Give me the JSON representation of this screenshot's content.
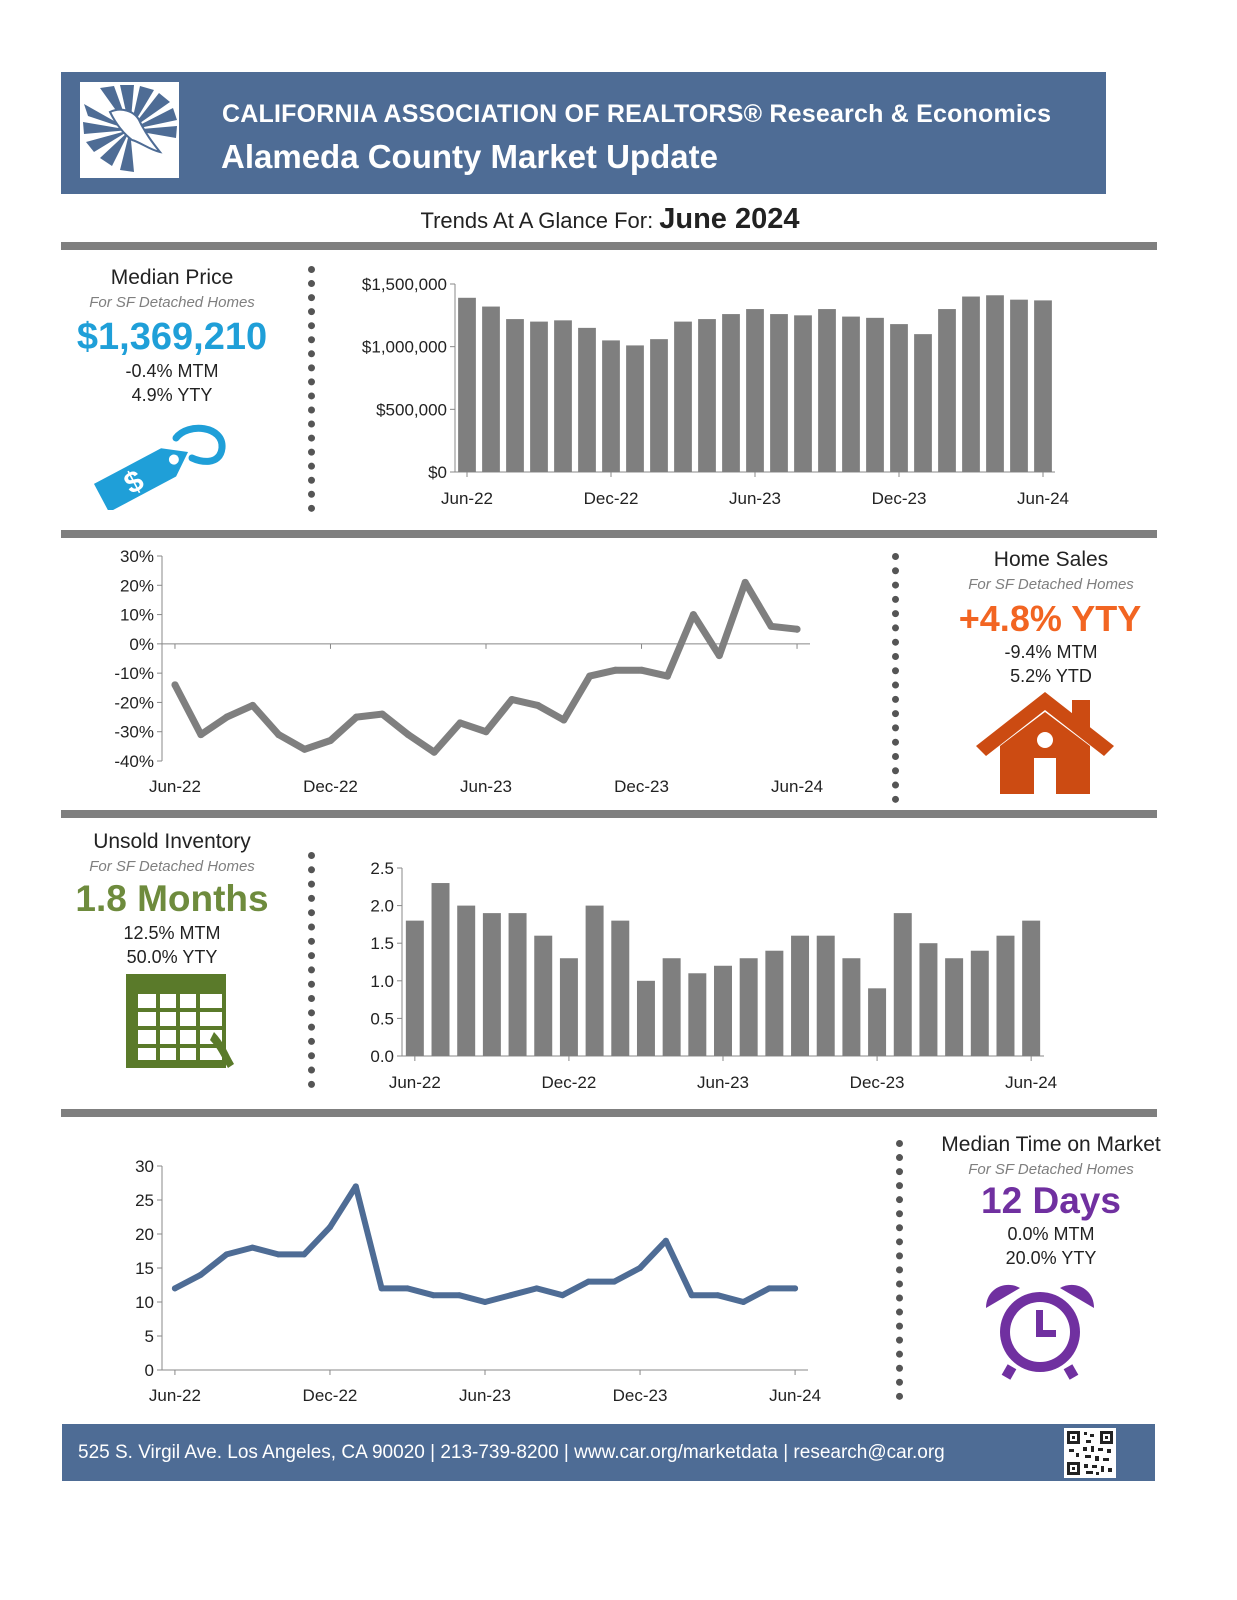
{
  "header": {
    "org": "CALIFORNIA ASSOCIATION OF REALTORS® Research & Economics",
    "title": "Alameda County Market Update",
    "trends_label": "Trends At A Glance For:",
    "period": "June 2024"
  },
  "median_price": {
    "title": "Median Price",
    "subtitle": "For SF Detached Homes",
    "value": "$1,369,210",
    "mtm": "-0.4% MTM",
    "yty": "4.9% YTY",
    "icon": "price-tag-icon"
  },
  "home_sales": {
    "title": "Home Sales",
    "subtitle": "For SF Detached Homes",
    "value": "+4.8% YTY",
    "mtm": "-9.4% MTM",
    "ytd": "5.2% YTD",
    "icon": "house-icon"
  },
  "inventory": {
    "title": "Unsold Inventory",
    "subtitle": "For SF Detached Homes",
    "value": "1.8 Months",
    "mtm": "12.5% MTM",
    "yty": "50.0% YTY",
    "icon": "calendar-icon"
  },
  "time_on_market": {
    "title": "Median Time on Market",
    "subtitle": "For SF Detached Homes",
    "value": "12 Days",
    "mtm": "0.0% MTM",
    "yty": "20.0% YTY",
    "icon": "alarm-clock-icon"
  },
  "colors": {
    "header": "#4e6c95",
    "price": "#1f9fd8",
    "sales": "#f26522",
    "house": "#cc4b12",
    "inventory": "#6e8b3d",
    "calendar": "#5a7a2a",
    "days": "#7030a0",
    "bar": "#7f7f7f",
    "line_gray": "#7f7f7f",
    "line_blue": "#4e6c95"
  },
  "footer": {
    "text": "525 S. Virgil Ave. Los Angeles, CA 90020 | 213-739-8200 | www.car.org/marketdata | research@car.org",
    "qr": "qr-code-icon"
  },
  "chart_data": [
    {
      "id": "price",
      "type": "bar",
      "title": "Median Price",
      "categories": [
        "Jun-22",
        "Jul-22",
        "Aug-22",
        "Sep-22",
        "Oct-22",
        "Nov-22",
        "Dec-22",
        "Jan-23",
        "Feb-23",
        "Mar-23",
        "Apr-23",
        "May-23",
        "Jun-23",
        "Jul-23",
        "Aug-23",
        "Sep-23",
        "Oct-23",
        "Nov-23",
        "Dec-23",
        "Jan-24",
        "Feb-24",
        "Mar-24",
        "Apr-24",
        "May-24",
        "Jun-24"
      ],
      "values": [
        1390000,
        1320000,
        1220000,
        1200000,
        1210000,
        1150000,
        1050000,
        1010000,
        1060000,
        1200000,
        1220000,
        1260000,
        1300000,
        1260000,
        1250000,
        1300000,
        1240000,
        1230000,
        1180000,
        1100000,
        1300000,
        1400000,
        1410000,
        1375000,
        1369210
      ],
      "tick_labels": [
        "Jun-22",
        "Dec-22",
        "Jun-23",
        "Dec-23",
        "Jun-24"
      ],
      "y_ticks": [
        "$0",
        "$500,000",
        "$1,000,000",
        "$1,500,000"
      ],
      "ylim": [
        0,
        1500000
      ]
    },
    {
      "id": "sales",
      "type": "line",
      "title": "Home Sales YTY % change",
      "categories": [
        "Jun-22",
        "Jul-22",
        "Aug-22",
        "Sep-22",
        "Oct-22",
        "Nov-22",
        "Dec-22",
        "Jan-23",
        "Feb-23",
        "Mar-23",
        "Apr-23",
        "May-23",
        "Jun-23",
        "Jul-23",
        "Aug-23",
        "Sep-23",
        "Oct-23",
        "Nov-23",
        "Dec-23",
        "Jan-24",
        "Feb-24",
        "Mar-24",
        "Apr-24",
        "May-24",
        "Jun-24"
      ],
      "values": [
        -14,
        -31,
        -25,
        -21,
        -31,
        -36,
        -33,
        -25,
        -24,
        -31,
        -37,
        -27,
        -30,
        -19,
        -21,
        -26,
        -11,
        -9,
        -9,
        -11,
        10,
        -4,
        21,
        6,
        5
      ],
      "tick_labels": [
        "Jun-22",
        "Dec-22",
        "Jun-23",
        "Dec-23",
        "Jun-24"
      ],
      "y_ticks": [
        "-40%",
        "-30%",
        "-20%",
        "-10%",
        "0%",
        "10%",
        "20%",
        "30%"
      ],
      "ylim": [
        -40,
        30
      ]
    },
    {
      "id": "inventory",
      "type": "bar",
      "title": "Unsold Inventory (Months)",
      "categories": [
        "Jun-22",
        "Jul-22",
        "Aug-22",
        "Sep-22",
        "Oct-22",
        "Nov-22",
        "Dec-22",
        "Jan-23",
        "Feb-23",
        "Mar-23",
        "Apr-23",
        "May-23",
        "Jun-23",
        "Jul-23",
        "Aug-23",
        "Sep-23",
        "Oct-23",
        "Nov-23",
        "Dec-23",
        "Jan-24",
        "Feb-24",
        "Mar-24",
        "Apr-24",
        "May-24",
        "Jun-24"
      ],
      "values": [
        1.8,
        2.3,
        2.0,
        1.9,
        1.9,
        1.6,
        1.3,
        2.0,
        1.8,
        1.0,
        1.3,
        1.1,
        1.2,
        1.3,
        1.4,
        1.6,
        1.6,
        1.3,
        0.9,
        1.9,
        1.5,
        1.3,
        1.4,
        1.6,
        1.8
      ],
      "tick_labels": [
        "Jun-22",
        "Dec-22",
        "Jun-23",
        "Dec-23",
        "Jun-24"
      ],
      "y_ticks": [
        "0.0",
        "0.5",
        "1.0",
        "1.5",
        "2.0",
        "2.5"
      ],
      "ylim": [
        0,
        2.5
      ]
    },
    {
      "id": "days",
      "type": "line",
      "title": "Median Time on Market (Days)",
      "categories": [
        "Jun-22",
        "Jul-22",
        "Aug-22",
        "Sep-22",
        "Oct-22",
        "Nov-22",
        "Dec-22",
        "Jan-23",
        "Feb-23",
        "Mar-23",
        "Apr-23",
        "May-23",
        "Jun-23",
        "Jul-23",
        "Aug-23",
        "Sep-23",
        "Oct-23",
        "Nov-23",
        "Dec-23",
        "Jan-24",
        "Feb-24",
        "Mar-24",
        "Apr-24",
        "May-24",
        "Jun-24"
      ],
      "values": [
        12,
        14,
        17,
        18,
        17,
        17,
        21,
        27,
        12,
        12,
        11,
        11,
        10,
        11,
        12,
        11,
        13,
        13,
        15,
        19,
        11,
        11,
        10,
        12,
        12
      ],
      "tick_labels": [
        "Jun-22",
        "Dec-22",
        "Jun-23",
        "Dec-23",
        "Jun-24"
      ],
      "y_ticks": [
        "0",
        "5",
        "10",
        "15",
        "20",
        "25",
        "30"
      ],
      "ylim": [
        0,
        30
      ]
    }
  ]
}
